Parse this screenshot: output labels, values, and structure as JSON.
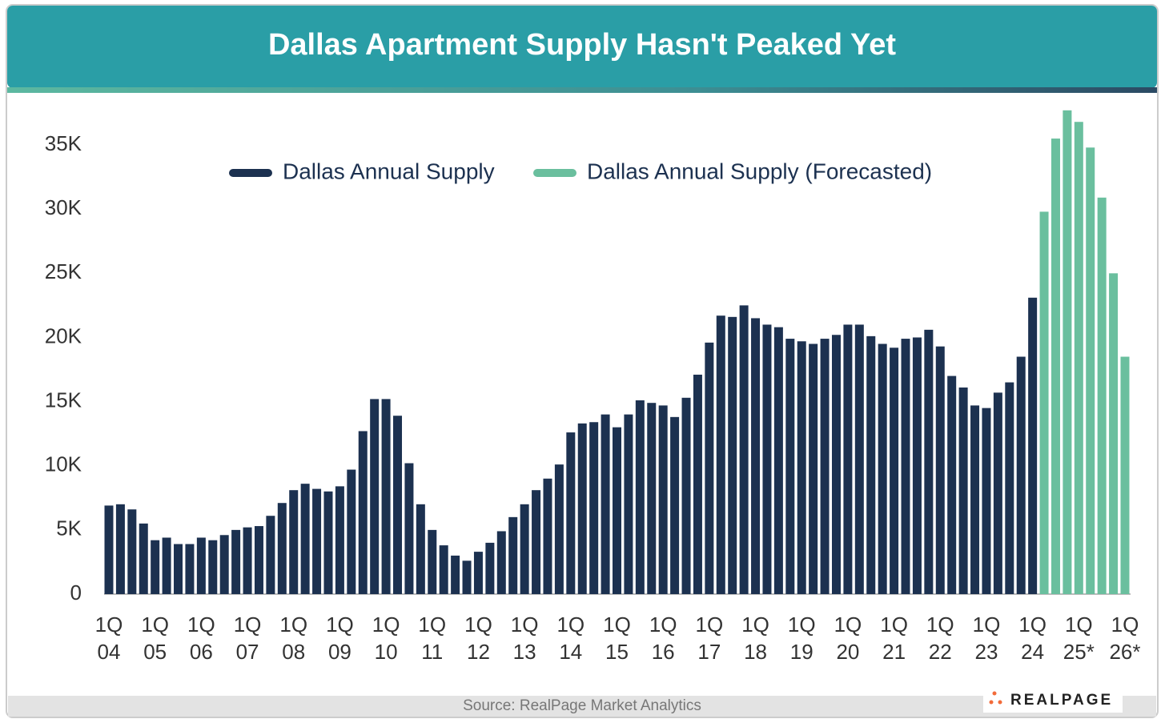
{
  "chart_data": {
    "type": "bar",
    "title": "Dallas Apartment Supply Hasn't Peaked Yet",
    "source": "Source: RealPage Market Analytics",
    "logo": "REALPAGE",
    "categories": [
      "1Q 04",
      null,
      null,
      null,
      "1Q 05",
      null,
      null,
      null,
      "1Q 06",
      null,
      null,
      null,
      "1Q 07",
      null,
      null,
      null,
      "1Q 08",
      null,
      null,
      null,
      "1Q 09",
      null,
      null,
      null,
      "1Q 10",
      null,
      null,
      null,
      "1Q 11",
      null,
      null,
      null,
      "1Q 12",
      null,
      null,
      null,
      "1Q 13",
      null,
      null,
      null,
      "1Q 14",
      null,
      null,
      null,
      "1Q 15",
      null,
      null,
      null,
      "1Q 16",
      null,
      null,
      null,
      "1Q 17",
      null,
      null,
      null,
      "1Q 18",
      null,
      null,
      null,
      "1Q 19",
      null,
      null,
      null,
      "1Q 20",
      null,
      null,
      null,
      "1Q 21",
      null,
      null,
      null,
      "1Q 22",
      null,
      null,
      null,
      "1Q 23",
      null,
      null,
      null,
      "1Q 24",
      null,
      null,
      null,
      "1Q 25*",
      null,
      null,
      null,
      "1Q 26*"
    ],
    "series": [
      {
        "name": "Dallas Annual Supply",
        "color": "#1c3150",
        "values": [
          6900,
          7000,
          6600,
          5500,
          4200,
          4400,
          3900,
          3900,
          4400,
          4200,
          4600,
          5000,
          5200,
          5300,
          6100,
          7100,
          8100,
          8600,
          8200,
          8000,
          8400,
          9700,
          12700,
          15200,
          15200,
          13900,
          10200,
          7000,
          5000,
          3800,
          3000,
          2600,
          3300,
          4000,
          4900,
          6000,
          7000,
          8100,
          9000,
          10100,
          12600,
          13300,
          13400,
          14000,
          13000,
          14000,
          15100,
          14900,
          14700,
          13800,
          15300,
          17100,
          19600,
          21700,
          21600,
          22500,
          21500,
          21000,
          20800,
          19900,
          19700,
          19500,
          19900,
          20200,
          21000,
          21000,
          20100,
          19500,
          19200,
          19900,
          20000,
          20600,
          19300,
          17000,
          16100,
          14700,
          14500,
          15700,
          16500,
          18500,
          23100,
          null,
          null,
          null,
          null,
          null,
          null,
          null,
          null
        ]
      },
      {
        "name": "Dallas Annual Supply (Forecasted)",
        "color": "#6abf9e",
        "values": [
          null,
          null,
          null,
          null,
          null,
          null,
          null,
          null,
          null,
          null,
          null,
          null,
          null,
          null,
          null,
          null,
          null,
          null,
          null,
          null,
          null,
          null,
          null,
          null,
          null,
          null,
          null,
          null,
          null,
          null,
          null,
          null,
          null,
          null,
          null,
          null,
          null,
          null,
          null,
          null,
          null,
          null,
          null,
          null,
          null,
          null,
          null,
          null,
          null,
          null,
          null,
          null,
          null,
          null,
          null,
          null,
          null,
          null,
          null,
          null,
          null,
          null,
          null,
          null,
          null,
          null,
          null,
          null,
          null,
          null,
          null,
          null,
          null,
          null,
          null,
          null,
          null,
          null,
          null,
          null,
          null,
          29800,
          35500,
          37700,
          36800,
          34800,
          30900,
          25000,
          18500
        ]
      }
    ],
    "ylim": [
      0,
      38000
    ],
    "yticks": [
      0,
      {
        "value": 5000,
        "label": "5K"
      },
      {
        "value": 10000,
        "label": "10K"
      },
      {
        "value": 15000,
        "label": "15K"
      },
      {
        "value": 20000,
        "label": "20K"
      },
      {
        "value": 25000,
        "label": "25K"
      },
      {
        "value": 30000,
        "label": "30K"
      },
      {
        "value": 35000,
        "label": "35K"
      }
    ]
  }
}
